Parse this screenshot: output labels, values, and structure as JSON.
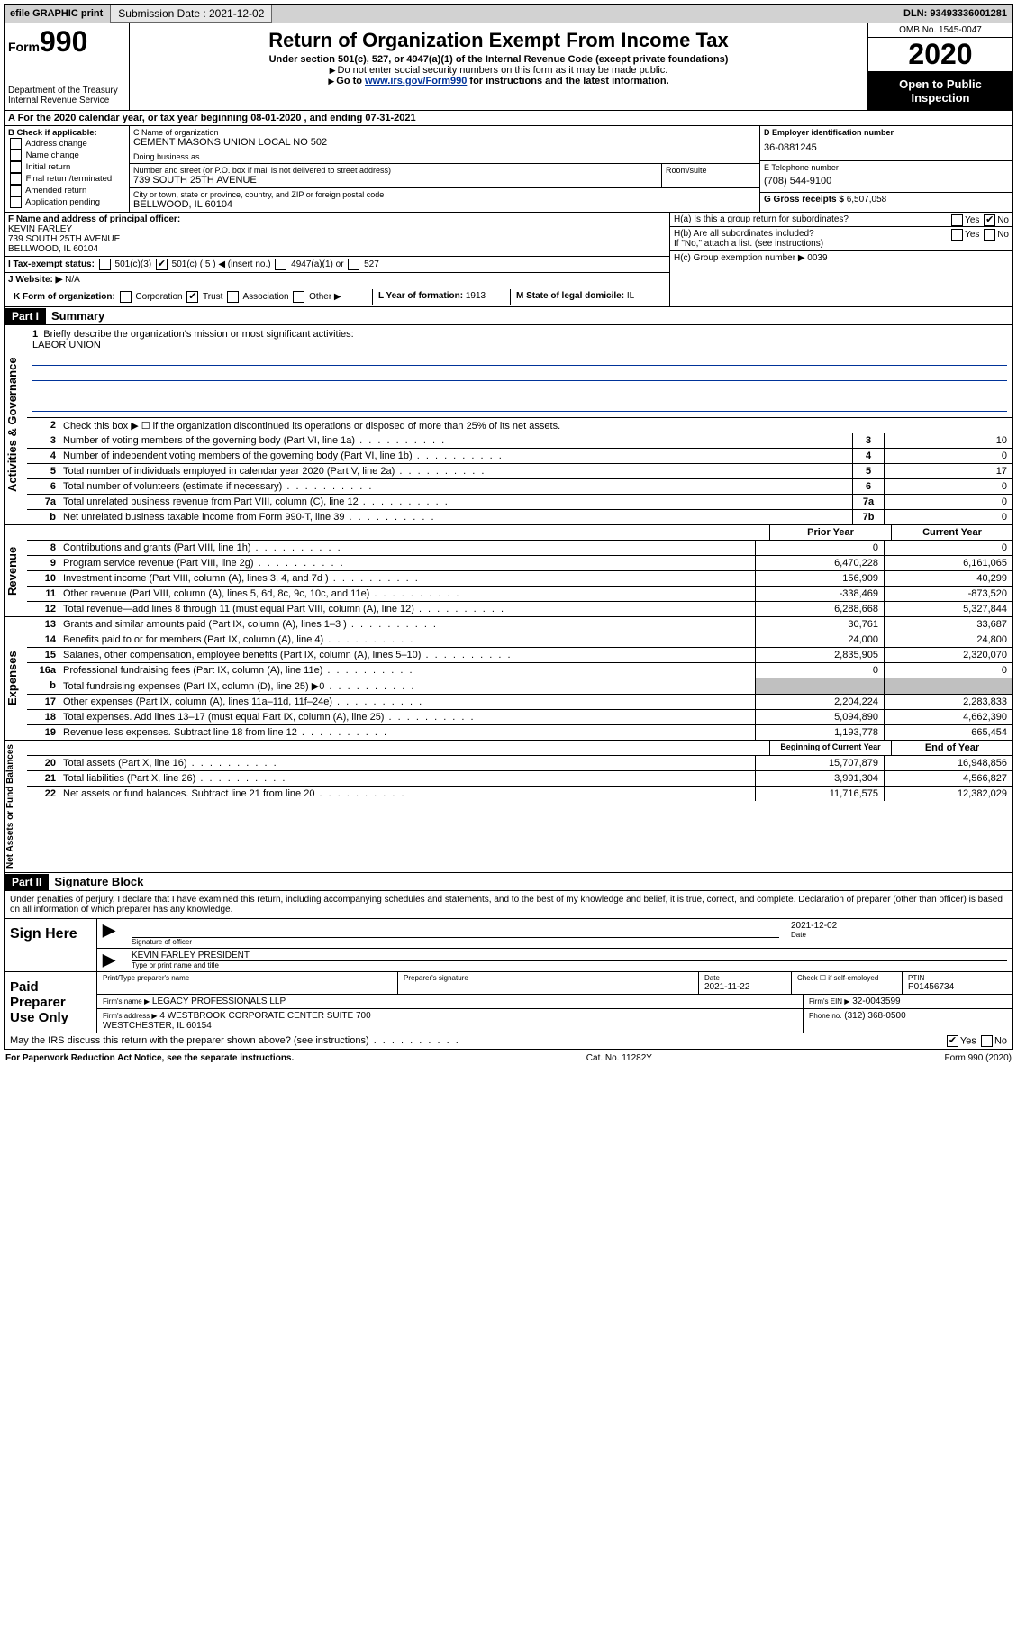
{
  "topbar": {
    "efile": "efile GRAPHIC print",
    "sub_label": "Submission Date : 2021-12-02",
    "dln": "DLN: 93493336001281"
  },
  "header": {
    "form_prefix": "Form",
    "form_num": "990",
    "dept": "Department of the Treasury\nInternal Revenue Service",
    "title": "Return of Organization Exempt From Income Tax",
    "sub": "Under section 501(c), 527, or 4947(a)(1) of the Internal Revenue Code (except private foundations)",
    "note1": "Do not enter social security numbers on this form as it may be made public.",
    "note2_pre": "Go to ",
    "note2_link": "www.irs.gov/Form990",
    "note2_post": " for instructions and the latest information.",
    "omb": "OMB No. 1545-0047",
    "year": "2020",
    "inspect": "Open to Public Inspection"
  },
  "lineA": "A   For the 2020 calendar year, or tax year beginning 08-01-2020     , and ending 07-31-2021",
  "boxB": {
    "title": "B Check if applicable:",
    "items": [
      "Address change",
      "Name change",
      "Initial return",
      "Final return/terminated",
      "Amended return",
      "Application pending"
    ]
  },
  "boxC": {
    "name_lbl": "C Name of organization",
    "name": "CEMENT MASONS UNION LOCAL NO 502",
    "dba_lbl": "Doing business as",
    "dba": "",
    "addr_lbl": "Number and street (or P.O. box if mail is not delivered to street address)",
    "room_lbl": "Room/suite",
    "addr": "739 SOUTH 25TH AVENUE",
    "city_lbl": "City or town, state or province, country, and ZIP or foreign postal code",
    "city": "BELLWOOD, IL  60104"
  },
  "boxD": {
    "lbl": "D Employer identification number",
    "val": "36-0881245"
  },
  "boxE": {
    "lbl": "E Telephone number",
    "val": "(708) 544-9100"
  },
  "boxG": {
    "lbl": "G Gross receipts $",
    "val": "6,507,058"
  },
  "boxF": {
    "lbl": "F  Name and address of principal officer:",
    "name": "KEVIN FARLEY",
    "addr1": "739 SOUTH 25TH AVENUE",
    "addr2": "BELLWOOD, IL  60104"
  },
  "boxH": {
    "a": "H(a)  Is this a group return for subordinates?",
    "a_yes": "Yes",
    "a_no": "No",
    "b": "H(b)  Are all subordinates included?",
    "b_yes": "Yes",
    "b_no": "No",
    "b_note": "If \"No,\" attach a list. (see instructions)",
    "c": "H(c)  Group exemption number ▶   0039"
  },
  "boxI": {
    "lbl": "I   Tax-exempt status:",
    "o501c3": "501(c)(3)",
    "o501c": "501(c) ( 5 ) ◀ (insert no.)",
    "o4947": "4947(a)(1) or",
    "o527": "527"
  },
  "boxJ": {
    "lbl": "J   Website: ▶",
    "val": "  N/A"
  },
  "boxK": {
    "lbl": "K Form of organization:",
    "corp": "Corporation",
    "trust": "Trust",
    "assoc": "Association",
    "other": "Other ▶"
  },
  "boxL": {
    "lbl": "L Year of formation:",
    "val": "1913"
  },
  "boxM": {
    "lbl": "M State of legal domicile:",
    "val": "IL"
  },
  "part1": {
    "hdr": "Part I",
    "title": "Summary"
  },
  "briefly": {
    "num": "1",
    "txt": "Briefly describe the organization's mission or most significant activities:",
    "val": "LABOR UNION"
  },
  "summary": {
    "l2": "Check this box ▶ ☐  if the organization discontinued its operations or disposed of more than 25% of its net assets.",
    "rows_top": [
      {
        "n": "3",
        "d": "Number of voting members of the governing body (Part VI, line 1a)",
        "b": "3",
        "v": "10"
      },
      {
        "n": "4",
        "d": "Number of independent voting members of the governing body (Part VI, line 1b)",
        "b": "4",
        "v": "0"
      },
      {
        "n": "5",
        "d": "Total number of individuals employed in calendar year 2020 (Part V, line 2a)",
        "b": "5",
        "v": "17"
      },
      {
        "n": "6",
        "d": "Total number of volunteers (estimate if necessary)",
        "b": "6",
        "v": "0"
      },
      {
        "n": "7a",
        "d": "Total unrelated business revenue from Part VIII, column (C), line 12",
        "b": "7a",
        "v": "0"
      },
      {
        "n": "b",
        "d": "Net unrelated business taxable income from Form 990-T, line 39",
        "b": "7b",
        "v": "0"
      }
    ],
    "col_prior": "Prior Year",
    "col_curr": "Current Year",
    "rev": [
      {
        "n": "8",
        "d": "Contributions and grants (Part VIII, line 1h)",
        "p": "0",
        "c": "0"
      },
      {
        "n": "9",
        "d": "Program service revenue (Part VIII, line 2g)",
        "p": "6,470,228",
        "c": "6,161,065"
      },
      {
        "n": "10",
        "d": "Investment income (Part VIII, column (A), lines 3, 4, and 7d )",
        "p": "156,909",
        "c": "40,299"
      },
      {
        "n": "11",
        "d": "Other revenue (Part VIII, column (A), lines 5, 6d, 8c, 9c, 10c, and 11e)",
        "p": "-338,469",
        "c": "-873,520"
      },
      {
        "n": "12",
        "d": "Total revenue—add lines 8 through 11 (must equal Part VIII, column (A), line 12)",
        "p": "6,288,668",
        "c": "5,327,844"
      }
    ],
    "exp": [
      {
        "n": "13",
        "d": "Grants and similar amounts paid (Part IX, column (A), lines 1–3 )",
        "p": "30,761",
        "c": "33,687"
      },
      {
        "n": "14",
        "d": "Benefits paid to or for members (Part IX, column (A), line 4)",
        "p": "24,000",
        "c": "24,800"
      },
      {
        "n": "15",
        "d": "Salaries, other compensation, employee benefits (Part IX, column (A), lines 5–10)",
        "p": "2,835,905",
        "c": "2,320,070"
      },
      {
        "n": "16a",
        "d": "Professional fundraising fees (Part IX, column (A), line 11e)",
        "p": "0",
        "c": "0"
      },
      {
        "n": "b",
        "d": "Total fundraising expenses (Part IX, column (D), line 25) ▶0",
        "p": "",
        "c": "",
        "shade": true
      },
      {
        "n": "17",
        "d": "Other expenses (Part IX, column (A), lines 11a–11d, 11f–24e)",
        "p": "2,204,224",
        "c": "2,283,833"
      },
      {
        "n": "18",
        "d": "Total expenses. Add lines 13–17 (must equal Part IX, column (A), line 25)",
        "p": "5,094,890",
        "c": "4,662,390"
      },
      {
        "n": "19",
        "d": "Revenue less expenses. Subtract line 18 from line 12",
        "p": "1,193,778",
        "c": "665,454"
      }
    ],
    "col_beg": "Beginning of Current Year",
    "col_end": "End of Year",
    "net": [
      {
        "n": "20",
        "d": "Total assets (Part X, line 16)",
        "p": "15,707,879",
        "c": "16,948,856"
      },
      {
        "n": "21",
        "d": "Total liabilities (Part X, line 26)",
        "p": "3,991,304",
        "c": "4,566,827"
      },
      {
        "n": "22",
        "d": "Net assets or fund balances. Subtract line 21 from line 20",
        "p": "11,716,575",
        "c": "12,382,029"
      }
    ]
  },
  "vtabs": {
    "gov": "Activities & Governance",
    "rev": "Revenue",
    "exp": "Expenses",
    "net": "Net Assets or Fund Balances"
  },
  "part2": {
    "hdr": "Part II",
    "title": "Signature Block"
  },
  "perjury": "Under penalties of perjury, I declare that I have examined this return, including accompanying schedules and statements, and to the best of my knowledge and belief, it is true, correct, and complete. Declaration of preparer (other than officer) is based on all information of which preparer has any knowledge.",
  "sign": {
    "here": "Sign Here",
    "sig_lbl": "Signature of officer",
    "date_lbl": "Date",
    "date": "2021-12-02",
    "name": "KEVIN FARLEY  PRESIDENT",
    "name_lbl": "Type or print name and title"
  },
  "paid": {
    "title": "Paid Preparer Use Only",
    "pt_name_lbl": "Print/Type preparer's name",
    "pt_name": "",
    "sig_lbl": "Preparer's signature",
    "date_lbl": "Date",
    "date": "2021-11-22",
    "check_lbl": "Check ☐ if self-employed",
    "ptin_lbl": "PTIN",
    "ptin": "P01456734",
    "firm_name_lbl": "Firm's name    ▶",
    "firm_name": "LEGACY PROFESSIONALS LLP",
    "firm_ein_lbl": "Firm's EIN ▶",
    "firm_ein": "32-0043599",
    "firm_addr_lbl": "Firm's address ▶",
    "firm_addr": "4 WESTBROOK CORPORATE CENTER SUITE 700\nWESTCHESTER, IL  60154",
    "phone_lbl": "Phone no.",
    "phone": "(312) 368-0500"
  },
  "discuss": {
    "txt": "May the IRS discuss this return with the preparer shown above? (see instructions)",
    "yes": "Yes",
    "no": "No"
  },
  "footer": {
    "left": "For Paperwork Reduction Act Notice, see the separate instructions.",
    "mid": "Cat. No. 11282Y",
    "right": "Form 990 (2020)"
  }
}
